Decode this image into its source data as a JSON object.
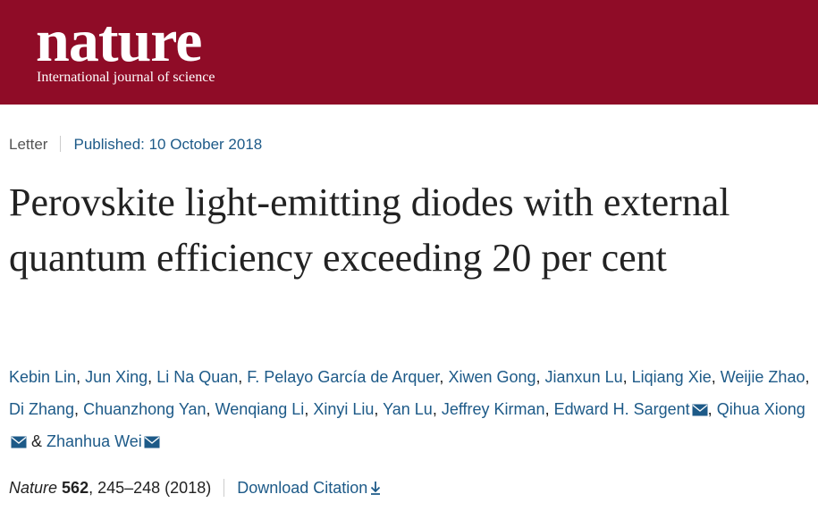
{
  "header": {
    "logo": "nature",
    "tagline": "International journal of science"
  },
  "article": {
    "type": "Letter",
    "published": "Published: 10 October 2018",
    "title": "Perovskite light-emitting diodes with external quantum efficiency exceeding 20 per cent",
    "authors": [
      {
        "name": "Kebin Lin",
        "separator": ","
      },
      {
        "name": "Jun Xing",
        "separator": ","
      },
      {
        "name": "Li Na Quan",
        "separator": ","
      },
      {
        "name": "F. Pelayo García de Arquer",
        "separator": ","
      },
      {
        "name": "Xiwen Gong",
        "separator": ","
      },
      {
        "name": "Jianxun Lu",
        "separator": ","
      },
      {
        "name": "Liqiang Xie",
        "separator": ","
      },
      {
        "name": "Weijie Zhao",
        "separator": ","
      },
      {
        "name": "Di Zhang",
        "separator": ","
      },
      {
        "name": "Chuanzhong Yan",
        "separator": ","
      },
      {
        "name": "Wenqiang Li",
        "separator": ","
      },
      {
        "name": "Xinyi Liu",
        "separator": ","
      },
      {
        "name": "Yan Lu",
        "separator": ","
      },
      {
        "name": "Jeffrey Kirman",
        "separator": ","
      },
      {
        "name": "Edward H. Sargent",
        "corresponding": true,
        "separator": ","
      },
      {
        "name": "Qihua Xiong",
        "corresponding": true,
        "separator": "&"
      },
      {
        "name": "Zhanhua Wei",
        "corresponding": true
      }
    ],
    "citation": {
      "journal": "Nature",
      "volume": "562",
      "pages": ", 245–248 (2018)",
      "download": "Download Citation"
    }
  }
}
